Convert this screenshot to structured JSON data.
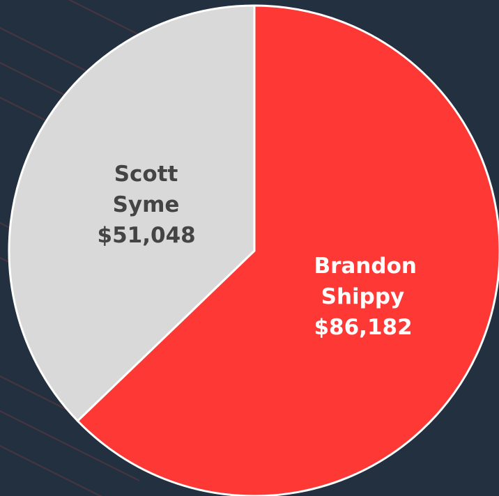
{
  "chart_data": {
    "type": "pie",
    "categories": [
      "Brandon Shippy",
      "Scott Syme"
    ],
    "values": [
      86182,
      51048
    ],
    "value_labels": [
      "$86,182",
      "$51,048"
    ],
    "colors": [
      "#fe3834",
      "#d9d9d9"
    ],
    "label_colors": [
      "#ffffff",
      "#444444"
    ]
  }
}
